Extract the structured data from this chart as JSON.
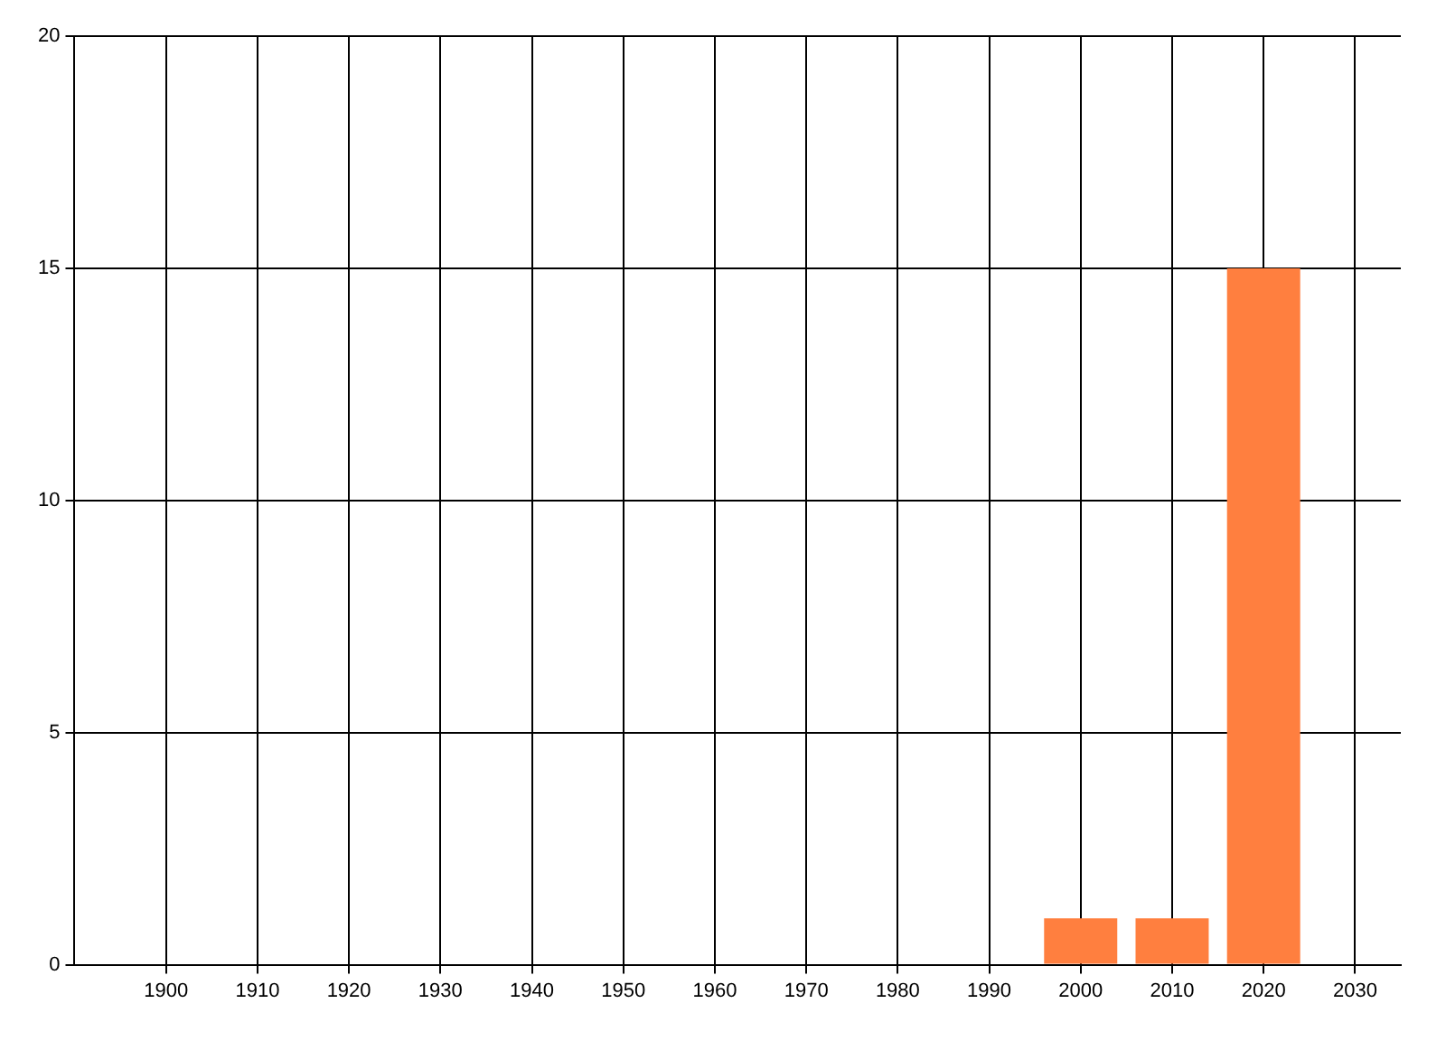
{
  "chart_data": {
    "type": "bar",
    "x": [
      2000,
      2010,
      2020
    ],
    "values": [
      1,
      1,
      15
    ],
    "color": "#ff7f3f",
    "xlim": [
      1890,
      2035
    ],
    "xticks": [
      1900,
      1910,
      1920,
      1930,
      1940,
      1950,
      1960,
      1970,
      1980,
      1990,
      2000,
      2010,
      2020,
      2030
    ],
    "ylim": [
      0,
      20
    ],
    "yticks": [
      0,
      5,
      10,
      15,
      20
    ],
    "grid": true,
    "legend": false
  }
}
